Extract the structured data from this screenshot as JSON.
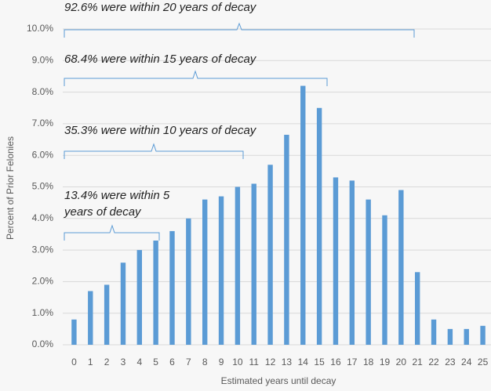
{
  "chart_data": {
    "type": "bar",
    "x_label": "Estimated years until decay",
    "y_label": "Percent of Prior Felonies",
    "categories": [
      "0",
      "1",
      "2",
      "3",
      "4",
      "5",
      "6",
      "7",
      "8",
      "9",
      "10",
      "11",
      "12",
      "13",
      "14",
      "15",
      "16",
      "17",
      "18",
      "19",
      "20",
      "21",
      "22",
      "23",
      "24",
      "25"
    ],
    "values": [
      0.8,
      1.7,
      1.9,
      2.6,
      3.0,
      3.3,
      3.6,
      4.0,
      4.6,
      4.7,
      5.0,
      5.1,
      5.7,
      6.65,
      8.2,
      7.5,
      5.3,
      5.2,
      4.6,
      4.1,
      4.9,
      2.3,
      0.8,
      0.5,
      0.5,
      0.6
    ],
    "color": "#5b9bd5",
    "ylim": [
      0,
      10
    ],
    "yticks": [
      {
        "value": 0,
        "label": "0.0%"
      },
      {
        "value": 1,
        "label": "1.0%"
      },
      {
        "value": 2,
        "label": "2.0%"
      },
      {
        "value": 3,
        "label": "3.0%"
      },
      {
        "value": 4,
        "label": "4.0%"
      },
      {
        "value": 5,
        "label": "5.0%"
      },
      {
        "value": 6,
        "label": "6.0%"
      },
      {
        "value": 7,
        "label": "7.0%"
      },
      {
        "value": 8,
        "label": "8.0%"
      },
      {
        "value": 9,
        "label": "9.0%"
      },
      {
        "value": 10,
        "label": "10.0%"
      }
    ],
    "grid": true,
    "annotations": [
      {
        "lines": [
          "92.6% were within 20 years of decay"
        ]
      },
      {
        "lines": [
          "68.4% were within 15 years of decay"
        ]
      },
      {
        "lines": [
          "35.3% were within 10 years of decay"
        ]
      },
      {
        "lines": [
          "13.4% were within 5",
          "years of decay"
        ]
      }
    ]
  }
}
